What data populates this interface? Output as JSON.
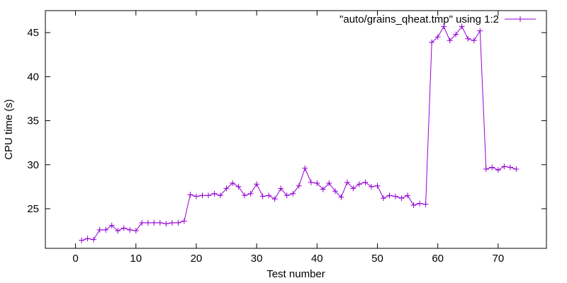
{
  "chart_data": {
    "type": "line",
    "xlabel": "Test number",
    "ylabel": "CPU time (s)",
    "xlim": [
      -5,
      78
    ],
    "ylim": [
      20.5,
      47.5
    ],
    "xticks": [
      0,
      10,
      20,
      30,
      40,
      50,
      60,
      70
    ],
    "yticks": [
      25,
      30,
      35,
      40,
      45
    ],
    "grid": false,
    "legend": "top-right",
    "series": [
      {
        "name": "\"auto/grains_qheat.tmp\" using 1:2",
        "color": "#9400d3",
        "marker": "plus",
        "x": [
          1,
          2,
          3,
          4,
          5,
          6,
          7,
          8,
          9,
          10,
          11,
          12,
          13,
          14,
          15,
          16,
          17,
          18,
          19,
          20,
          21,
          22,
          23,
          24,
          25,
          26,
          27,
          28,
          29,
          30,
          31,
          32,
          33,
          34,
          35,
          36,
          37,
          38,
          39,
          40,
          41,
          42,
          43,
          44,
          45,
          46,
          47,
          48,
          49,
          50,
          51,
          52,
          53,
          54,
          55,
          56,
          57,
          58,
          59,
          60,
          61,
          62,
          63,
          64,
          65,
          66,
          67,
          68,
          69,
          70,
          71,
          72,
          73
        ],
        "values": [
          21.4,
          21.6,
          21.5,
          22.6,
          22.6,
          23.1,
          22.5,
          22.8,
          22.6,
          22.5,
          23.4,
          23.4,
          23.4,
          23.4,
          23.3,
          23.4,
          23.4,
          23.6,
          26.6,
          26.4,
          26.5,
          26.5,
          26.7,
          26.5,
          27.3,
          27.9,
          27.5,
          26.5,
          26.7,
          27.8,
          26.4,
          26.5,
          26.1,
          27.3,
          26.5,
          26.7,
          27.6,
          29.6,
          28.0,
          27.9,
          27.2,
          27.9,
          27.0,
          26.3,
          28.0,
          27.3,
          27.8,
          28.0,
          27.5,
          27.6,
          26.2,
          26.5,
          26.4,
          26.2,
          26.5,
          25.4,
          25.6,
          25.5,
          43.9,
          44.5,
          45.7,
          44.1,
          44.8,
          45.7,
          44.3,
          44.1,
          45.2,
          29.5,
          29.7,
          29.4,
          29.8,
          29.7,
          29.5
        ]
      }
    ]
  }
}
